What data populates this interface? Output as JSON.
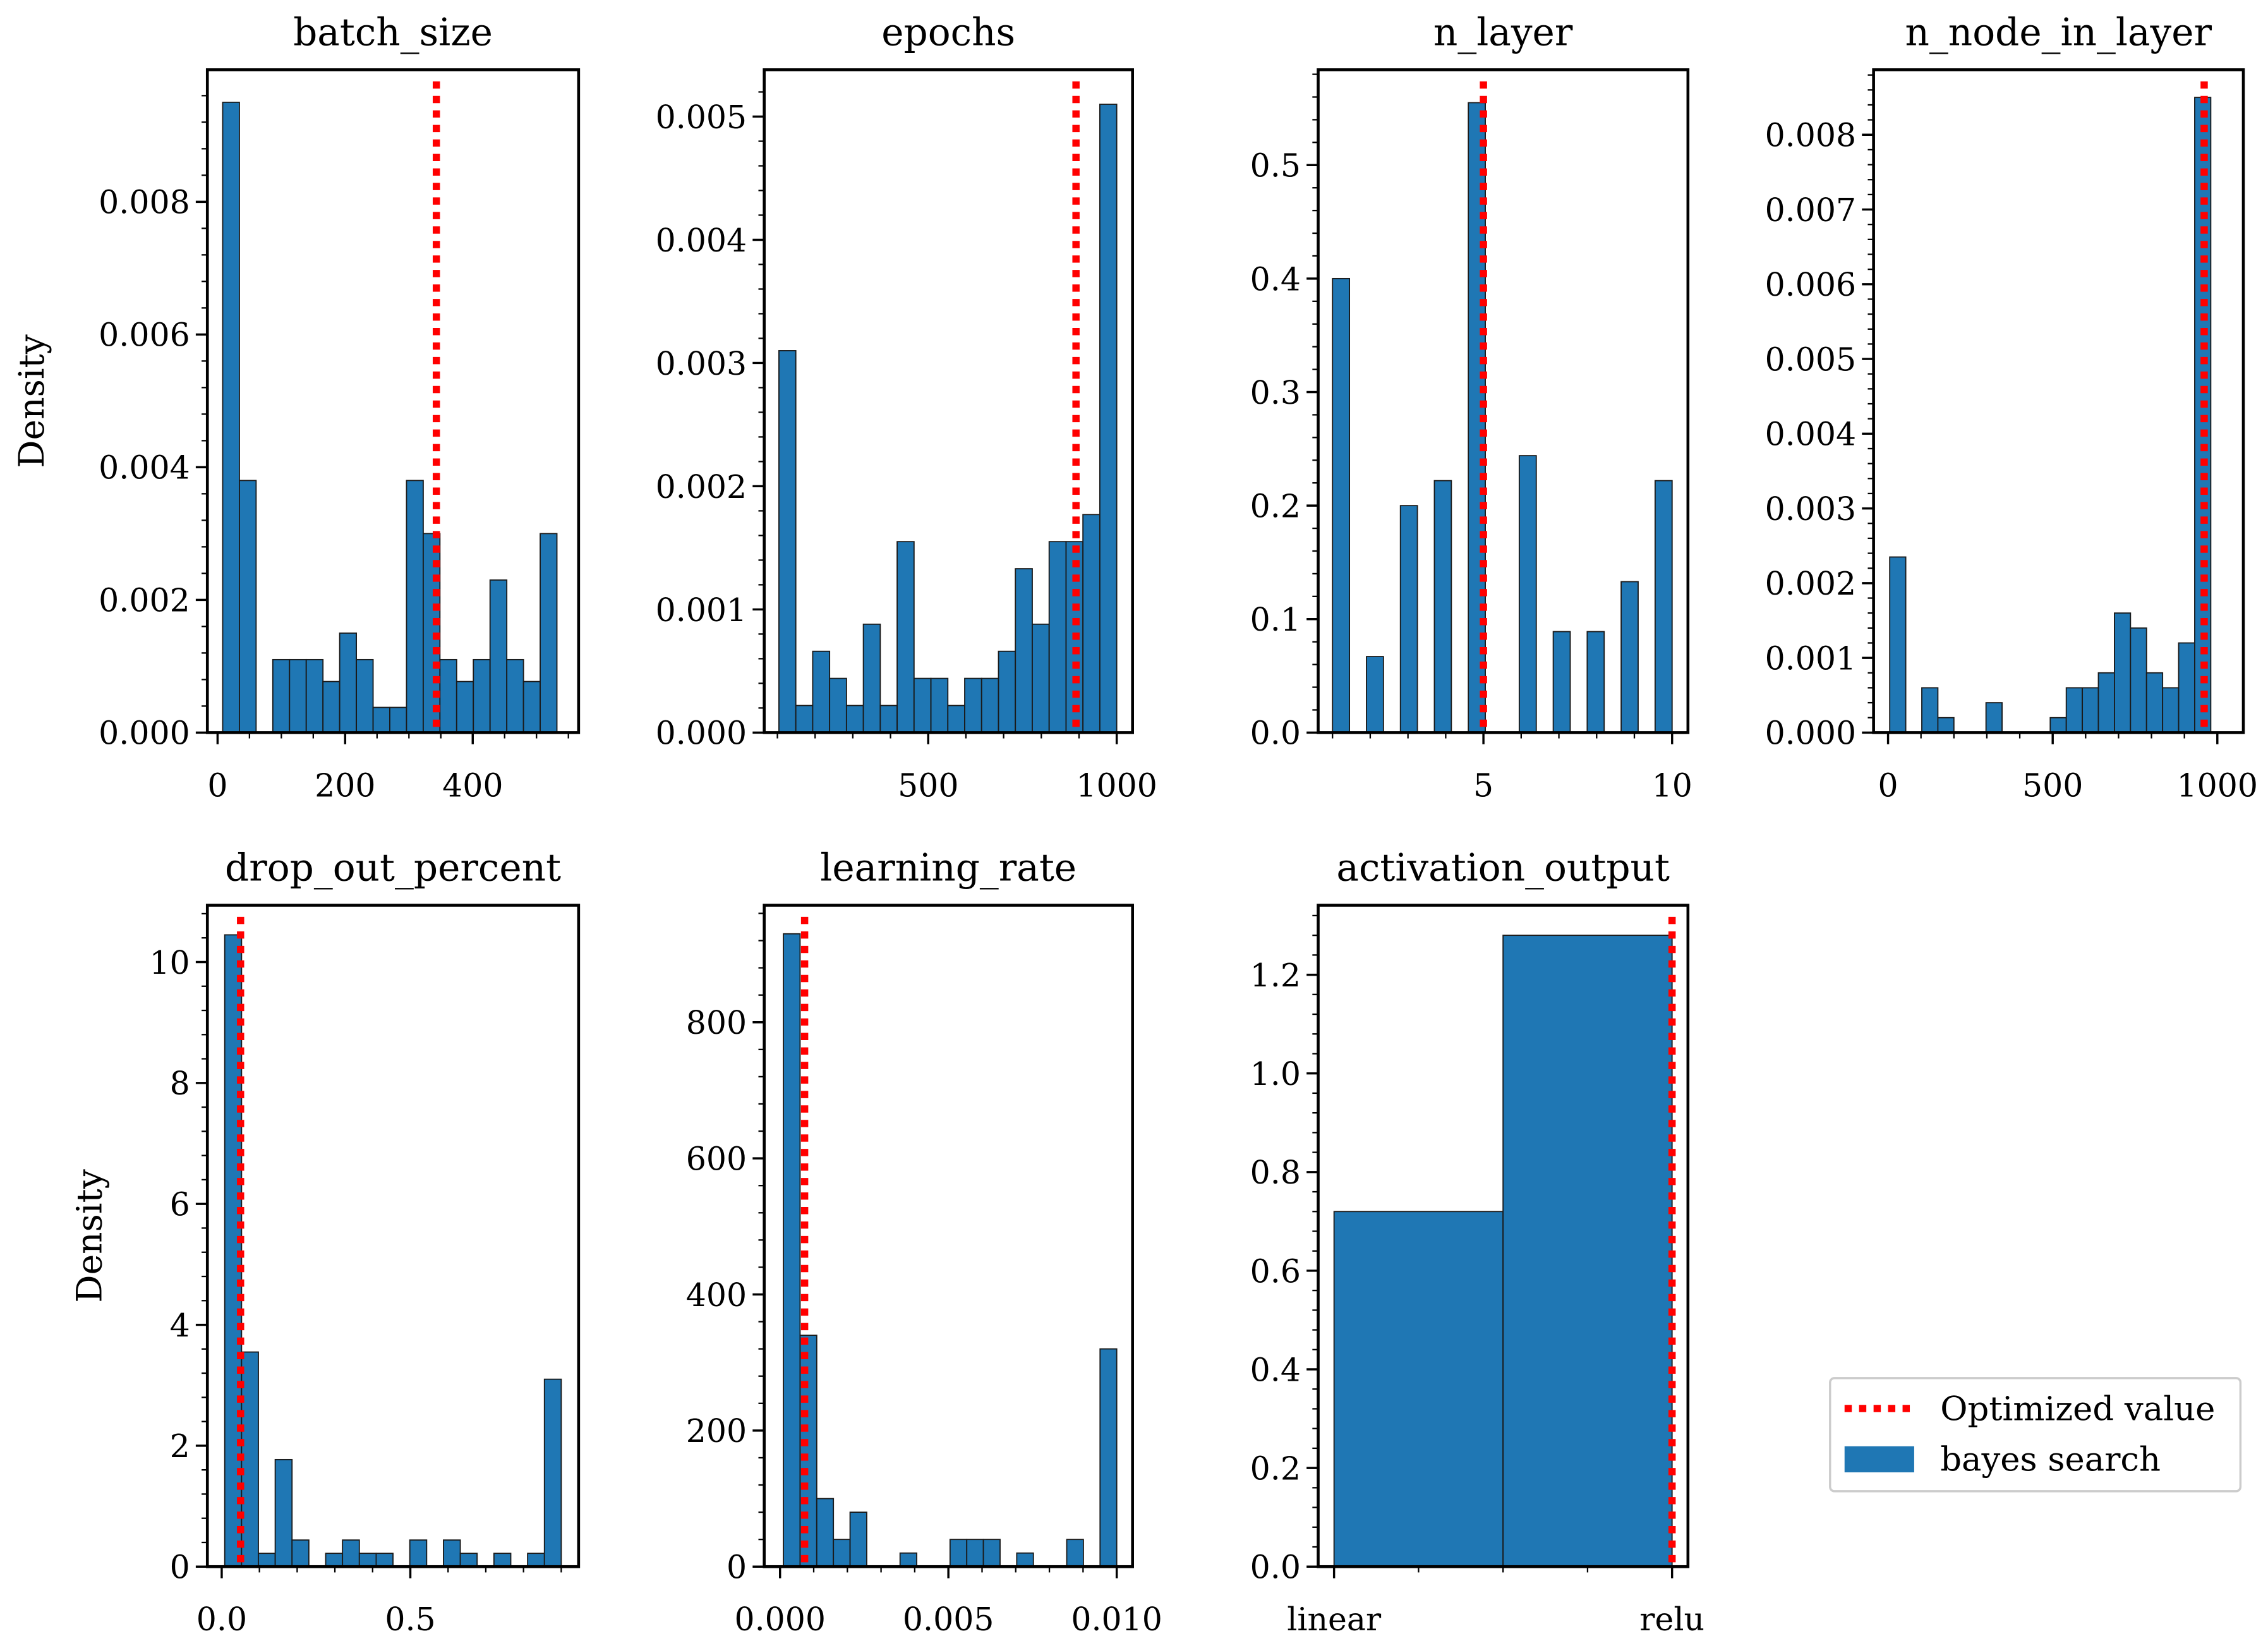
{
  "chart_data": [
    {
      "type": "bar",
      "title": "batch_size",
      "ylabel": "Density",
      "xlim": [
        -16,
        566
      ],
      "ylim": [
        0,
        0.00999
      ],
      "bin_range": [
        8,
        532
      ],
      "values": [
        0.0095,
        0.0038,
        0,
        0.0011,
        0.0011,
        0.0011,
        0.00077,
        0.0015,
        0.0011,
        0.00038,
        0.00038,
        0.0038,
        0.003,
        0.0011,
        0.00077,
        0.0011,
        0.0023,
        0.0011,
        0.00077,
        0.003
      ],
      "optimized_value": 343,
      "xticks": [
        0,
        200,
        400
      ],
      "xtick_labels": [
        "0",
        "200",
        "400"
      ],
      "xminor": 50,
      "yticks": [
        0,
        0.002,
        0.004,
        0.006,
        0.008
      ],
      "ytick_labels": [
        "0.000",
        "0.002",
        "0.004",
        "0.006",
        "0.008"
      ]
    },
    {
      "type": "bar",
      "title": "epochs",
      "ylabel": "",
      "xlim": [
        65,
        1042
      ],
      "ylim": [
        0,
        0.00538
      ],
      "bin_range": [
        104,
        1000
      ],
      "values": [
        0.0031,
        0.00022,
        0.00066,
        0.00044,
        0.00022,
        0.00088,
        0.00022,
        0.00155,
        0.00044,
        0.00044,
        0.00022,
        0.00044,
        0.00044,
        0.00066,
        0.00133,
        0.00088,
        0.00155,
        0.00155,
        0.00177,
        0.0051
      ],
      "optimized_value": 892,
      "xticks": [
        500,
        1000
      ],
      "xtick_labels": [
        "500",
        "1000"
      ],
      "xminor": 100,
      "yticks": [
        0,
        0.001,
        0.002,
        0.003,
        0.004,
        0.005
      ],
      "ytick_labels": [
        "0.000",
        "0.001",
        "0.002",
        "0.003",
        "0.004",
        "0.005"
      ]
    },
    {
      "type": "bar",
      "title": "n_layer",
      "ylabel": "",
      "xlim": [
        0.62,
        10.42
      ],
      "ylim": [
        0,
        0.584
      ],
      "bin_range": [
        1,
        10
      ],
      "values": [
        0.4,
        0,
        0.067,
        0,
        0.2,
        0,
        0.222,
        0,
        0.555,
        0,
        0,
        0.244,
        0,
        0.089,
        0,
        0.089,
        0,
        0.133,
        0,
        0.222
      ],
      "optimized_value": 5,
      "xticks": [
        5,
        10
      ],
      "xtick_labels": [
        "5",
        "10"
      ],
      "xminor": 1,
      "yticks": [
        0,
        0.1,
        0.2,
        0.3,
        0.4,
        0.5
      ],
      "ytick_labels": [
        "0.0",
        "0.1",
        "0.2",
        "0.3",
        "0.4",
        "0.5"
      ]
    },
    {
      "type": "bar",
      "title": "n_node_in_layer",
      "ylabel": "",
      "xlim": [
        -44,
        1079
      ],
      "ylim": [
        0,
        0.00887
      ],
      "bin_range": [
        5,
        980
      ],
      "values": [
        0.00235,
        0,
        0.0006,
        0.0002,
        0,
        0,
        0.0004,
        0,
        0,
        0,
        0.0002,
        0.0006,
        0.0006,
        0.0008,
        0.0016,
        0.0014,
        0.0008,
        0.0006,
        0.0012,
        0.0085
      ],
      "optimized_value": 960,
      "xticks": [
        0,
        500,
        1000
      ],
      "xtick_labels": [
        "0",
        "500",
        "1000"
      ],
      "xminor": 100,
      "yticks": [
        0,
        0.001,
        0.002,
        0.003,
        0.004,
        0.005,
        0.006,
        0.007,
        0.008
      ],
      "ytick_labels": [
        "0.000",
        "0.001",
        "0.002",
        "0.003",
        "0.004",
        "0.005",
        "0.006",
        "0.007",
        "0.008"
      ]
    },
    {
      "type": "bar",
      "title": "drop_out_percent",
      "ylabel": "Density",
      "xlim": [
        -0.038,
        0.946
      ],
      "ylim": [
        0,
        10.94
      ],
      "bin_range": [
        0.008,
        0.9
      ],
      "values": [
        10.45,
        3.55,
        0.22,
        1.77,
        0.44,
        0,
        0.22,
        0.44,
        0.22,
        0.22,
        0,
        0.44,
        0,
        0.44,
        0.22,
        0,
        0.22,
        0,
        0.22,
        3.1
      ],
      "optimized_value": 0.05,
      "xticks": [
        0,
        0.5
      ],
      "xtick_labels": [
        "0.0",
        "0.5"
      ],
      "xminor": 0.1,
      "yticks": [
        0,
        2,
        4,
        6,
        8,
        10
      ],
      "ytick_labels": [
        "0",
        "2",
        "4",
        "6",
        "8",
        "10"
      ]
    },
    {
      "type": "bar",
      "title": "learning_rate",
      "ylabel": "",
      "xlim": [
        -0.00047,
        0.01047
      ],
      "ylim": [
        0,
        972
      ],
      "bin_range": [
        0.0001,
        0.01
      ],
      "values": [
        930,
        340,
        100,
        40,
        80,
        0,
        0,
        20,
        0,
        0,
        40,
        40,
        40,
        0,
        20,
        0,
        0,
        40,
        0,
        320
      ],
      "optimized_value": 0.00073,
      "xticks": [
        0,
        0.005,
        0.01
      ],
      "xtick_labels": [
        "0.000",
        "0.005",
        "0.010"
      ],
      "xminor": 0.001,
      "yticks": [
        0,
        200,
        400,
        600,
        800
      ],
      "ytick_labels": [
        "0",
        "200",
        "400",
        "600",
        "800"
      ]
    },
    {
      "type": "bar",
      "title": "activation_output",
      "ylabel": "",
      "xlim": [
        -0.047,
        1.047
      ],
      "ylim": [
        0,
        1.341
      ],
      "bin_range": [
        0,
        1
      ],
      "values": [
        0.72,
        1.28
      ],
      "optimized_value": 1,
      "xticks": [
        0,
        1
      ],
      "xtick_labels": [
        "linear",
        "relu"
      ],
      "xminor": 0.25,
      "yticks": [
        0,
        0.2,
        0.4,
        0.6,
        0.8,
        1.0,
        1.2
      ],
      "ytick_labels": [
        "0.0",
        "0.2",
        "0.4",
        "0.6",
        "0.8",
        "1.0",
        "1.2"
      ]
    }
  ],
  "legend": {
    "placement": "lower-right",
    "entries": [
      {
        "label": "Optimized value",
        "color": "#ff0000",
        "style": "dotted"
      },
      {
        "label": "bayes search",
        "color": "#1f77b4",
        "style": "patch"
      }
    ]
  },
  "colors": {
    "bar": "#1f77b4",
    "bar_edge": "#1a1a1a",
    "line": "#ff0000"
  }
}
